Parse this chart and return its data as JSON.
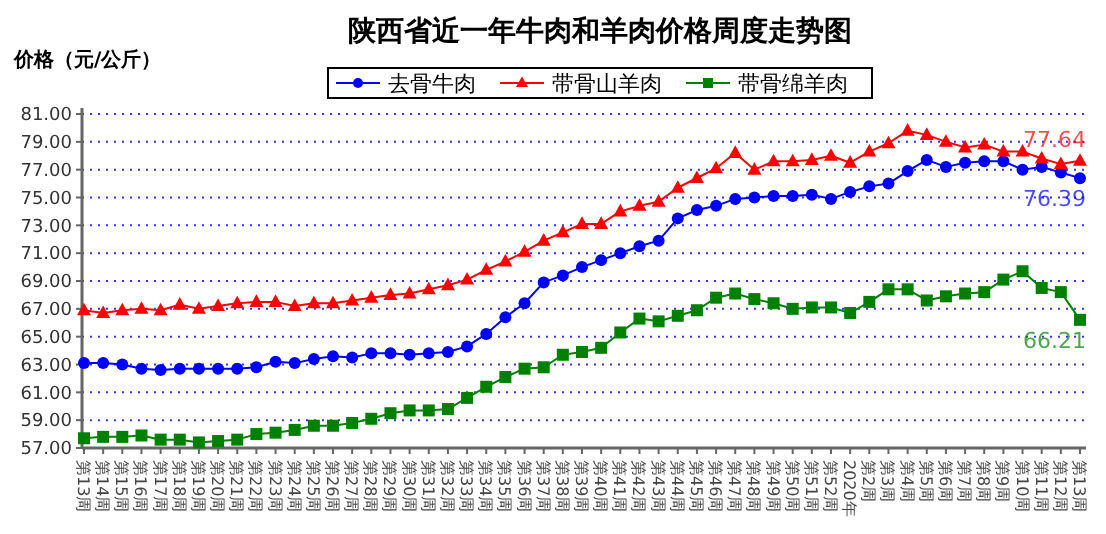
{
  "chart_data": {
    "type": "line",
    "title": "陕西省近一年牛肉和羊肉价格周度走势图",
    "ylabel": "价格（元/公斤）",
    "categories": [
      "第13周",
      "第14周",
      "第15周",
      "第16周",
      "第17周",
      "第18周",
      "第19周",
      "第20周",
      "第21周",
      "第22周",
      "第23周",
      "第24周",
      "第25周",
      "第26周",
      "第27周",
      "第28周",
      "第29周",
      "第30周",
      "第31周",
      "第32周",
      "第33周",
      "第34周",
      "第35周",
      "第36周",
      "第37周",
      "第38周",
      "第39周",
      "第40周",
      "第41周",
      "第42周",
      "第43周",
      "第44周",
      "第45周",
      "第46周",
      "第47周",
      "第48周",
      "第49周",
      "第50周",
      "第51周",
      "第52周",
      "2020年",
      "第2周",
      "第3周",
      "第4周",
      "第5周",
      "第6周",
      "第7周",
      "第8周",
      "第9周",
      "第10周",
      "第11周",
      "第12周",
      "第13周"
    ],
    "series": [
      {
        "name": "去骨牛肉",
        "color": "#0000ff",
        "marker": "circle",
        "values": [
          63.1,
          63.1,
          63.0,
          62.7,
          62.6,
          62.7,
          62.7,
          62.7,
          62.7,
          62.8,
          63.2,
          63.1,
          63.4,
          63.6,
          63.5,
          63.8,
          63.8,
          63.7,
          63.8,
          63.9,
          64.3,
          65.2,
          66.4,
          67.4,
          68.9,
          69.4,
          70.0,
          70.5,
          71.0,
          71.5,
          71.9,
          73.5,
          74.1,
          74.4,
          74.9,
          75.0,
          75.1,
          75.1,
          75.2,
          74.9,
          75.4,
          75.8,
          76.0,
          76.9,
          77.7,
          77.2,
          77.5,
          77.6,
          77.6,
          77.0,
          77.2,
          76.8,
          76.39
        ]
      },
      {
        "name": "带骨山羊肉",
        "color": "#ff0000",
        "marker": "triangle",
        "values": [
          66.9,
          66.7,
          66.9,
          67.0,
          66.9,
          67.3,
          67.0,
          67.2,
          67.4,
          67.5,
          67.5,
          67.2,
          67.4,
          67.4,
          67.6,
          67.8,
          68.0,
          68.1,
          68.4,
          68.7,
          69.1,
          69.8,
          70.4,
          71.1,
          71.9,
          72.5,
          73.1,
          73.1,
          74.0,
          74.4,
          74.7,
          75.7,
          76.4,
          77.1,
          78.2,
          77.0,
          77.6,
          77.6,
          77.7,
          78.0,
          77.5,
          78.3,
          78.9,
          79.8,
          79.5,
          79.0,
          78.6,
          78.8,
          78.3,
          78.3,
          77.8,
          77.4,
          77.64
        ]
      },
      {
        "name": "带骨绵羊肉",
        "color": "#008000",
        "marker": "square",
        "values": [
          57.7,
          57.8,
          57.8,
          57.9,
          57.6,
          57.6,
          57.4,
          57.5,
          57.6,
          58.0,
          58.1,
          58.3,
          58.6,
          58.6,
          58.8,
          59.1,
          59.5,
          59.7,
          59.7,
          59.8,
          60.6,
          61.4,
          62.1,
          62.7,
          62.8,
          63.7,
          63.9,
          64.2,
          65.3,
          66.3,
          66.1,
          66.5,
          66.9,
          67.8,
          68.1,
          67.7,
          67.4,
          67.0,
          67.1,
          67.1,
          66.7,
          67.5,
          68.4,
          68.4,
          67.6,
          67.9,
          68.1,
          68.2,
          69.1,
          69.7,
          68.5,
          68.2,
          66.21
        ]
      }
    ],
    "ylim": [
      57,
      81
    ],
    "yticks": [
      {
        "value": 57,
        "label": "57.00"
      },
      {
        "value": 59,
        "label": "59.00"
      },
      {
        "value": 61,
        "label": "61.00"
      },
      {
        "value": 63,
        "label": "63.00"
      },
      {
        "value": 65,
        "label": "65.00"
      },
      {
        "value": 67,
        "label": "67.00"
      },
      {
        "value": 69,
        "label": "69.00"
      },
      {
        "value": 71,
        "label": "71.00"
      },
      {
        "value": 73,
        "label": "73.00"
      },
      {
        "value": 75,
        "label": "75.00"
      },
      {
        "value": 77,
        "label": "77.00"
      },
      {
        "value": 79,
        "label": "79.00"
      },
      {
        "value": 81,
        "label": "81.00"
      }
    ],
    "grid": "y",
    "legend": "top",
    "line_style": "solid",
    "annotations": [
      "77.64",
      "76.39",
      "66.21"
    ]
  }
}
